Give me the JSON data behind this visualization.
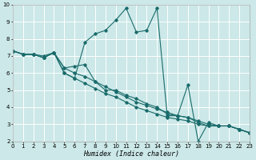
{
  "xlabel": "Humidex (Indice chaleur)",
  "xlim": [
    0,
    23
  ],
  "ylim": [
    2,
    10
  ],
  "xticks": [
    0,
    1,
    2,
    3,
    4,
    5,
    6,
    7,
    8,
    9,
    10,
    11,
    12,
    13,
    14,
    15,
    16,
    17,
    18,
    19,
    20,
    21,
    22,
    23
  ],
  "yticks": [
    2,
    3,
    4,
    5,
    6,
    7,
    8,
    9,
    10
  ],
  "bg_color": "#cce8e8",
  "line_color": "#1a6b6b",
  "grid_color": "#ffffff",
  "series": [
    {
      "x": [
        0,
        1,
        2,
        3,
        4,
        5,
        6,
        7,
        8,
        9,
        10,
        11,
        12,
        13,
        14,
        15,
        16,
        17,
        18,
        19,
        20,
        21,
        22,
        23
      ],
      "y": [
        7.3,
        7.1,
        7.1,
        6.9,
        7.2,
        6.0,
        5.7,
        5.4,
        5.1,
        4.8,
        4.6,
        4.3,
        4.0,
        3.8,
        3.6,
        3.4,
        3.3,
        3.2,
        3.0,
        2.9,
        2.9,
        2.9,
        2.7,
        2.5
      ]
    },
    {
      "x": [
        0,
        1,
        2,
        3,
        4,
        5,
        6,
        7,
        8,
        9,
        10,
        11,
        12,
        13,
        14,
        15,
        16,
        17,
        18,
        19,
        20,
        21,
        22,
        23
      ],
      "y": [
        7.3,
        7.1,
        7.1,
        6.9,
        7.2,
        6.0,
        5.7,
        7.8,
        8.3,
        8.5,
        9.1,
        9.8,
        8.4,
        8.5,
        9.8,
        3.5,
        3.5,
        3.4,
        3.1,
        2.9,
        2.9,
        2.9,
        2.7,
        2.5
      ]
    },
    {
      "x": [
        0,
        1,
        2,
        3,
        4,
        5,
        6,
        7,
        8,
        9,
        10,
        11,
        12,
        13,
        14,
        15,
        16,
        17,
        18,
        19,
        20,
        21,
        22,
        23
      ],
      "y": [
        7.3,
        7.1,
        7.1,
        6.9,
        7.2,
        6.3,
        6.4,
        6.5,
        5.5,
        5.0,
        5.0,
        4.7,
        4.5,
        4.2,
        4.0,
        3.6,
        3.5,
        5.3,
        2.0,
        3.1,
        2.9,
        2.9,
        2.7,
        2.5
      ]
    },
    {
      "x": [
        0,
        1,
        2,
        3,
        4,
        5,
        6,
        7,
        8,
        9,
        10,
        11,
        12,
        13,
        14,
        15,
        16,
        17,
        18,
        19,
        20,
        21,
        22,
        23
      ],
      "y": [
        7.3,
        7.1,
        7.1,
        7.0,
        7.2,
        6.3,
        6.0,
        5.8,
        5.5,
        5.2,
        4.9,
        4.6,
        4.3,
        4.1,
        3.9,
        3.7,
        3.5,
        3.4,
        3.2,
        3.0,
        2.9,
        2.9,
        2.7,
        2.5
      ]
    }
  ]
}
